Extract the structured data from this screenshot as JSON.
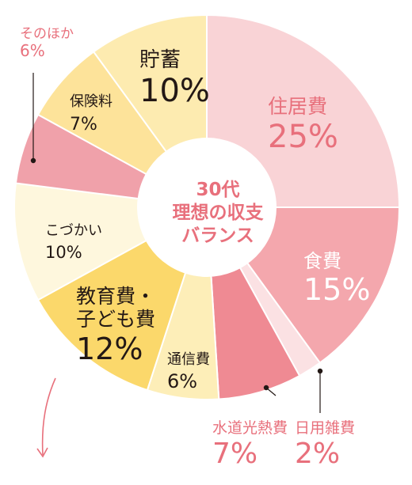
{
  "chart_data": {
    "type": "pie",
    "title": "30代\n理想の収支\nバランス",
    "title_lines": [
      "30代",
      "理想の収支",
      "バランス"
    ],
    "slices": [
      {
        "label": "住居費",
        "value": 25,
        "value_label": "25%",
        "color": "#f9d3d6"
      },
      {
        "label": "食費",
        "value": 15,
        "value_label": "15%",
        "color": "#f4a7ad"
      },
      {
        "label": "日用雑費",
        "value": 2,
        "value_label": "2%",
        "color": "#fbe1e3"
      },
      {
        "label": "水道光熱費",
        "value": 7,
        "value_label": "7%",
        "color": "#ef8a93"
      },
      {
        "label": "通信費",
        "value": 6,
        "value_label": "6%",
        "color": "#fdeeb8"
      },
      {
        "label": "教育費・子ども費",
        "value": 12,
        "value_label": "12%",
        "color": "#fbd86b"
      },
      {
        "label": "こづかい",
        "value": 10,
        "value_label": "10%",
        "color": "#fef7dd"
      },
      {
        "label": "そのほか",
        "value": 6,
        "value_label": "6%",
        "color": "#f0a1aa"
      },
      {
        "label": "保険料",
        "value": 7,
        "value_label": "7%",
        "color": "#fde39a"
      },
      {
        "label": "貯蓄",
        "value": 10,
        "value_label": "10%",
        "color": "#fdebb0"
      }
    ],
    "colors": {
      "text_dark": "#231815",
      "text_accent": "#e8707c",
      "center_text": "#e8707c"
    }
  },
  "labels": {
    "jukyo": {
      "name": "住居費",
      "pct": "25%"
    },
    "shoku": {
      "name": "食費",
      "pct": "15%"
    },
    "nichiyo": {
      "name": "日用雑費",
      "pct": "2%"
    },
    "suido": {
      "name": "水道光熱費",
      "pct": "7%"
    },
    "tsushin": {
      "name": "通信費",
      "pct": "6%"
    },
    "kyoiku_1": "教育費・",
    "kyoiku_2": "子ども費",
    "kyoiku_pct": "12%",
    "kozukai": {
      "name": "こづかい",
      "pct": "10%"
    },
    "sonota": {
      "name": "そのほか",
      "pct": "6%"
    },
    "hoken": {
      "name": "保険料",
      "pct": "7%"
    },
    "chochiku": {
      "name": "貯蓄",
      "pct": "10%"
    }
  }
}
